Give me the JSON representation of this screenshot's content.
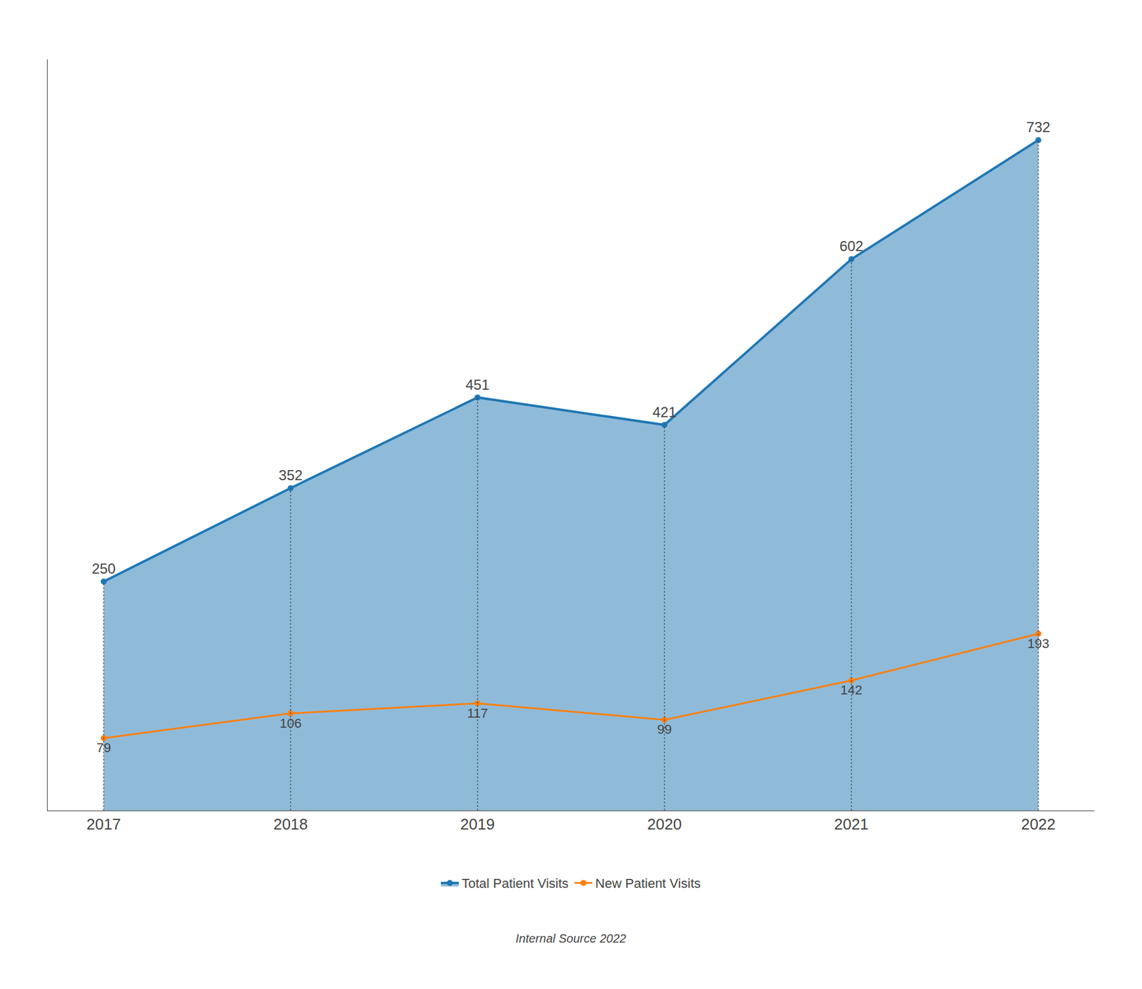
{
  "chart_data": {
    "type": "line",
    "categories": [
      "2017",
      "2018",
      "2019",
      "2020",
      "2021",
      "2022"
    ],
    "series": [
      {
        "name": "Total Patient Visits",
        "values": [
          250,
          352,
          451,
          421,
          602,
          732
        ]
      },
      {
        "name": "New Patient Visits",
        "values": [
          79,
          106,
          117,
          99,
          142,
          193
        ]
      }
    ],
    "ylim": [
      0,
      820
    ],
    "tick_labels": "x",
    "grid": false,
    "legend": "bottom",
    "data_labels": true,
    "annotations": [
      "Internal Source 2022"
    ]
  }
}
